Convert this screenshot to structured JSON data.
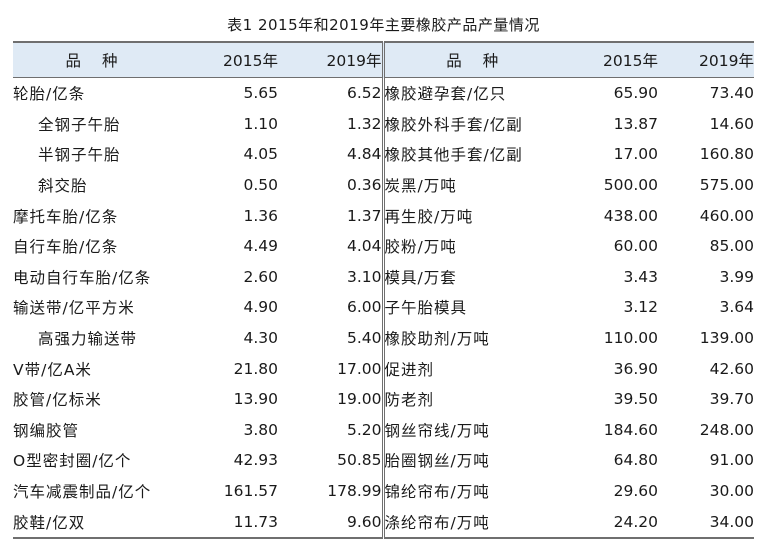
{
  "title": "表1  2015年和2019年主要橡胶产品产量情况",
  "headers": {
    "name": "品 种",
    "y2015": "2015年",
    "y2019": "2019年"
  },
  "rows": [
    {
      "left": {
        "name": "轮胎/亿条",
        "a": "5.65",
        "b": "6.52"
      },
      "right": {
        "name": "橡胶避孕套/亿只",
        "a": "65.90",
        "b": "73.40"
      }
    },
    {
      "left": {
        "name": "全钢子午胎",
        "a": "1.10",
        "b": "1.32"
      },
      "right": {
        "name": "橡胶外科手套/亿副",
        "a": "13.87",
        "b": "14.60"
      }
    },
    {
      "left": {
        "name": "半钢子午胎",
        "a": "4.05",
        "b": "4.84"
      },
      "right": {
        "name": "橡胶其他手套/亿副",
        "a": "17.00",
        "b": "160.80"
      }
    },
    {
      "left": {
        "name": "斜交胎",
        "a": "0.50",
        "b": "0.36"
      },
      "right": {
        "name": "炭黑/万吨",
        "a": "500.00",
        "b": "575.00"
      }
    },
    {
      "left": {
        "name": "摩托车胎/亿条",
        "a": "1.36",
        "b": "1.37"
      },
      "right": {
        "name": "再生胶/万吨",
        "a": "438.00",
        "b": "460.00"
      }
    },
    {
      "left": {
        "name": "自行车胎/亿条",
        "a": "4.49",
        "b": "4.04"
      },
      "right": {
        "name": "胶粉/万吨",
        "a": "60.00",
        "b": "85.00"
      }
    },
    {
      "left": {
        "name": "电动自行车胎/亿条",
        "a": "2.60",
        "b": "3.10"
      },
      "right": {
        "name": "模具/万套",
        "a": "3.43",
        "b": "3.99"
      }
    },
    {
      "left": {
        "name": "输送带/亿平方米",
        "a": "4.90",
        "b": "6.00"
      },
      "right": {
        "name": "子午胎模具",
        "a": "3.12",
        "b": "3.64"
      }
    },
    {
      "left": {
        "name": "高强力输送带",
        "a": "4.30",
        "b": "5.40"
      },
      "right": {
        "name": "橡胶助剂/万吨",
        "a": "110.00",
        "b": "139.00"
      }
    },
    {
      "left": {
        "name": "V带/亿A米",
        "a": "21.80",
        "b": "17.00"
      },
      "right": {
        "name": "促进剂",
        "a": "36.90",
        "b": "42.60"
      }
    },
    {
      "left": {
        "name": "胶管/亿标米",
        "a": "13.90",
        "b": "19.00"
      },
      "right": {
        "name": "防老剂",
        "a": "39.50",
        "b": "39.70"
      }
    },
    {
      "left": {
        "name": "钢编胶管",
        "a": "3.80",
        "b": "5.20"
      },
      "right": {
        "name": "钢丝帘线/万吨",
        "a": "184.60",
        "b": "248.00"
      }
    },
    {
      "left": {
        "name": "O型密封圈/亿个",
        "a": "42.93",
        "b": "50.85"
      },
      "right": {
        "name": "胎圈钢丝/万吨",
        "a": "64.80",
        "b": "91.00"
      }
    },
    {
      "left": {
        "name": "汽车减震制品/亿个",
        "a": "161.57",
        "b": "178.99"
      },
      "right": {
        "name": "锦纶帘布/万吨",
        "a": "29.60",
        "b": "30.00"
      }
    },
    {
      "left": {
        "name": "胶鞋/亿双",
        "a": "11.73",
        "b": "9.60"
      },
      "right": {
        "name": "涤纶帘布/万吨",
        "a": "24.20",
        "b": "34.00"
      }
    }
  ]
}
